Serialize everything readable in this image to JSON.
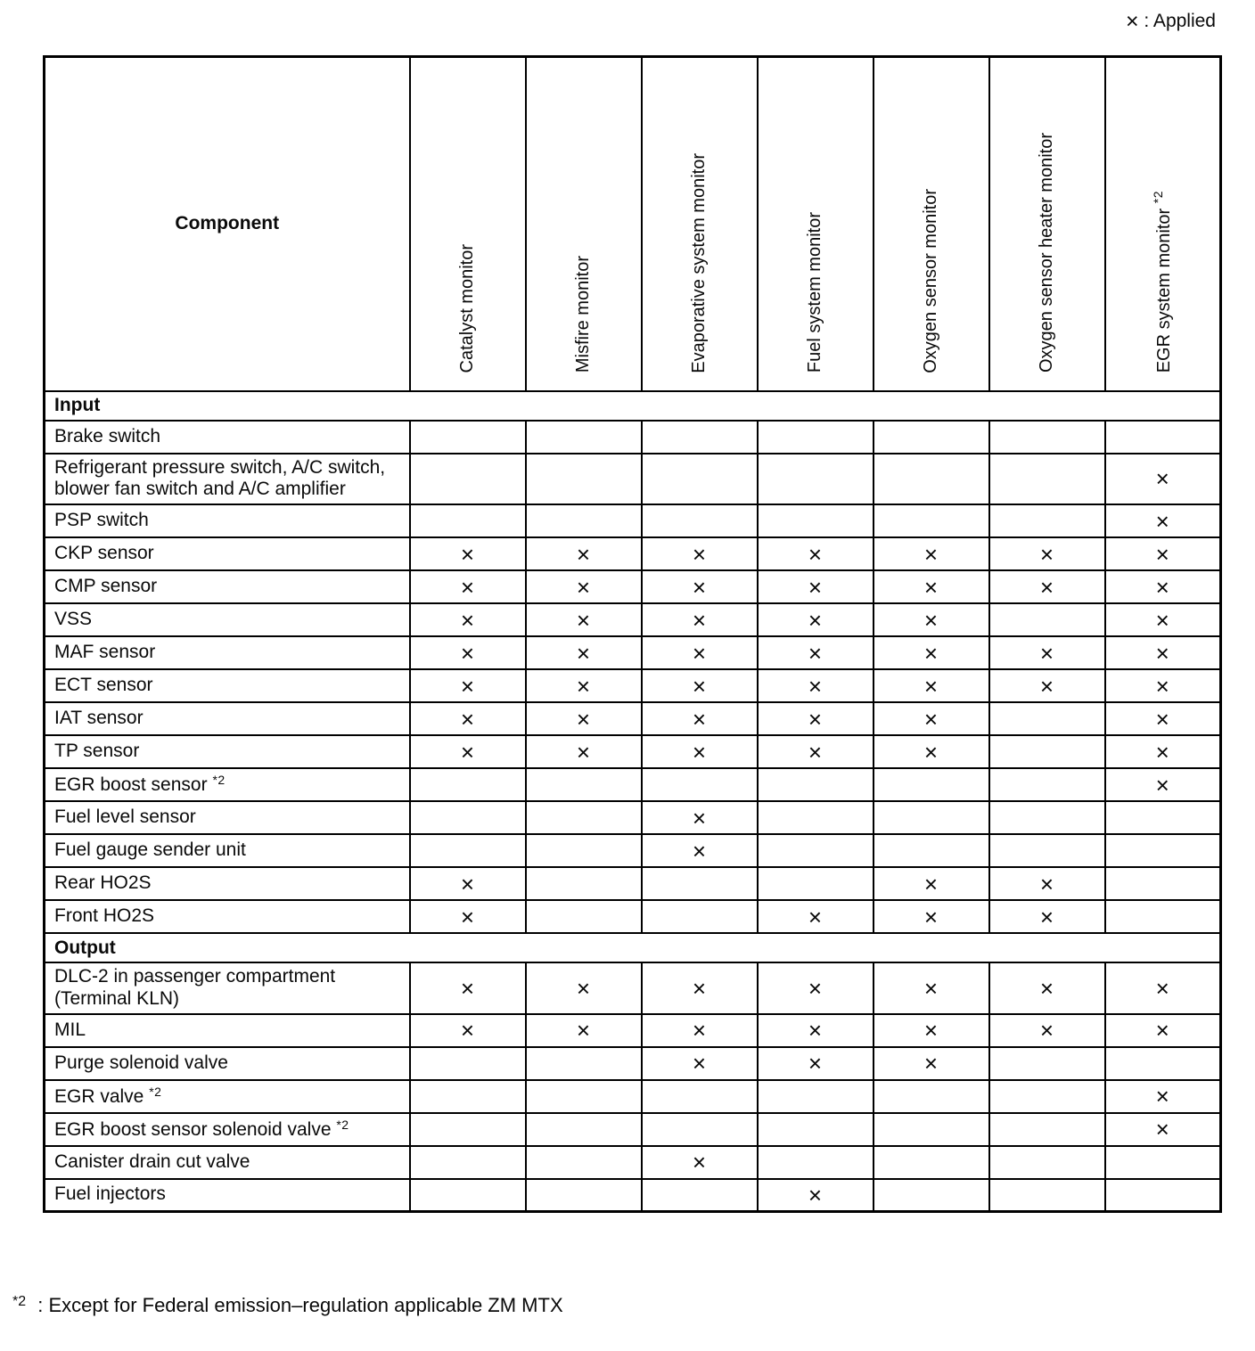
{
  "legend": {
    "mark": "×",
    "label": ": Applied"
  },
  "table": {
    "component_header": "Component",
    "columns": [
      {
        "label": "Catalyst monitor"
      },
      {
        "label": "Misfire monitor"
      },
      {
        "label": "Evaporative system monitor"
      },
      {
        "label": "Fuel system monitor"
      },
      {
        "label": "Oxygen sensor monitor"
      },
      {
        "label": "Oxygen sensor heater monitor"
      },
      {
        "label": "EGR system monitor",
        "sup": "*2"
      }
    ],
    "rows": [
      {
        "type": "section",
        "label": "Input"
      },
      {
        "label": "Brake switch",
        "marks": [
          0,
          0,
          0,
          0,
          0,
          0,
          0
        ]
      },
      {
        "label": "Refrigerant pressure switch, A/C switch, blower fan switch and A/C amplifier",
        "marks": [
          0,
          0,
          0,
          0,
          0,
          0,
          1
        ]
      },
      {
        "label": "PSP switch",
        "marks": [
          0,
          0,
          0,
          0,
          0,
          0,
          1
        ]
      },
      {
        "label": "CKP sensor",
        "marks": [
          1,
          1,
          1,
          1,
          1,
          1,
          1
        ]
      },
      {
        "label": "CMP sensor",
        "marks": [
          1,
          1,
          1,
          1,
          1,
          1,
          1
        ]
      },
      {
        "label": "VSS",
        "marks": [
          1,
          1,
          1,
          1,
          1,
          0,
          1
        ]
      },
      {
        "label": "MAF sensor",
        "marks": [
          1,
          1,
          1,
          1,
          1,
          1,
          1
        ]
      },
      {
        "label": "ECT sensor",
        "marks": [
          1,
          1,
          1,
          1,
          1,
          1,
          1
        ]
      },
      {
        "label": "IAT sensor",
        "marks": [
          1,
          1,
          1,
          1,
          1,
          0,
          1
        ]
      },
      {
        "label": "TP sensor",
        "marks": [
          1,
          1,
          1,
          1,
          1,
          0,
          1
        ]
      },
      {
        "label": "EGR boost sensor",
        "sup": "*2",
        "marks": [
          0,
          0,
          0,
          0,
          0,
          0,
          1
        ]
      },
      {
        "label": "Fuel level sensor",
        "marks": [
          0,
          0,
          1,
          0,
          0,
          0,
          0
        ]
      },
      {
        "label": "Fuel gauge sender unit",
        "marks": [
          0,
          0,
          1,
          0,
          0,
          0,
          0
        ]
      },
      {
        "label": "Rear HO2S",
        "marks": [
          1,
          0,
          0,
          0,
          1,
          1,
          0
        ]
      },
      {
        "label": "Front HO2S",
        "marks": [
          1,
          0,
          0,
          1,
          1,
          1,
          0
        ]
      },
      {
        "type": "section",
        "label": "Output"
      },
      {
        "label": "DLC-2 in passenger compartment (Terminal KLN)",
        "marks": [
          1,
          1,
          1,
          1,
          1,
          1,
          1
        ]
      },
      {
        "label": "MIL",
        "marks": [
          1,
          1,
          1,
          1,
          1,
          1,
          1
        ]
      },
      {
        "label": "Purge solenoid valve",
        "marks": [
          0,
          0,
          1,
          1,
          1,
          0,
          0
        ]
      },
      {
        "label": "EGR valve",
        "sup": "*2",
        "marks": [
          0,
          0,
          0,
          0,
          0,
          0,
          1
        ]
      },
      {
        "label": "EGR boost sensor solenoid valve",
        "sup": "*2",
        "marks": [
          0,
          0,
          0,
          0,
          0,
          0,
          1
        ]
      },
      {
        "label": "Canister drain cut valve",
        "marks": [
          0,
          0,
          1,
          0,
          0,
          0,
          0
        ]
      },
      {
        "label": "Fuel injectors",
        "marks": [
          0,
          0,
          0,
          1,
          0,
          0,
          0
        ]
      }
    ]
  },
  "footnote": {
    "sup": "*2",
    "text": ": Except for Federal emission–regulation applicable ZM MTX"
  }
}
